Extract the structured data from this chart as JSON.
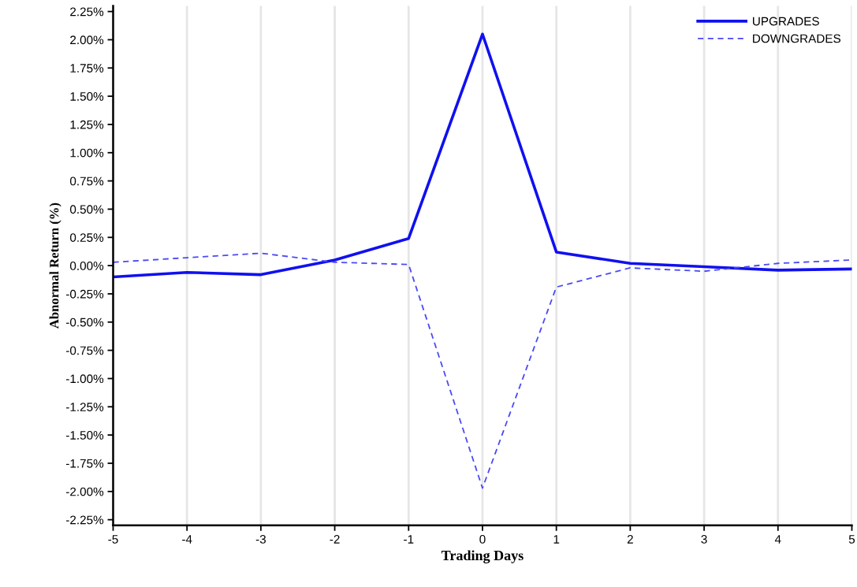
{
  "chart_data": {
    "type": "line",
    "xlabel": "Trading Days",
    "ylabel": "Abnormal Return (%)",
    "x": [
      -5,
      -4,
      -3,
      -2,
      -1,
      0,
      1,
      2,
      3,
      4,
      5
    ],
    "series": [
      {
        "name": "UPGRADES",
        "color": "#1010f0",
        "line_style": "solid",
        "values": [
          -0.1,
          -0.06,
          -0.08,
          0.05,
          0.24,
          2.05,
          0.12,
          0.02,
          -0.01,
          -0.04,
          -0.03
        ]
      },
      {
        "name": "DOWNGRADES",
        "color": "#4a4af5",
        "line_style": "dashed",
        "values": [
          0.03,
          0.07,
          0.11,
          0.03,
          0.01,
          -1.97,
          -0.19,
          -0.02,
          -0.05,
          0.02,
          0.05
        ]
      }
    ],
    "xlim": [
      -5,
      5
    ],
    "xticks": [
      -5,
      -4,
      -3,
      -2,
      -1,
      0,
      1,
      2,
      3,
      4,
      5
    ],
    "ylim": [
      -2.3,
      2.3
    ],
    "yticks": [
      {
        "value": -2.25,
        "label": "-2.25%"
      },
      {
        "value": -2.0,
        "label": "-2.00%"
      },
      {
        "value": -1.75,
        "label": "-1.75%"
      },
      {
        "value": -1.5,
        "label": "-1.50%"
      },
      {
        "value": -1.25,
        "label": "-1.25%"
      },
      {
        "value": -1.0,
        "label": "-1.00%"
      },
      {
        "value": -0.75,
        "label": "-0.75%"
      },
      {
        "value": -0.5,
        "label": "-0.50%"
      },
      {
        "value": -0.25,
        "label": "-0.25%"
      },
      {
        "value": 0,
        "label": "0.00%"
      },
      {
        "value": 0.25,
        "label": "0.25%"
      },
      {
        "value": 0.5,
        "label": "0.50%"
      },
      {
        "value": 0.75,
        "label": "0.75%"
      },
      {
        "value": 1.0,
        "label": "1.00%"
      },
      {
        "value": 1.25,
        "label": "1.25%"
      },
      {
        "value": 1.5,
        "label": "1.50%"
      },
      {
        "value": 1.75,
        "label": "1.75%"
      },
      {
        "value": 2.0,
        "label": "2.00%"
      },
      {
        "value": 2.25,
        "label": "2.25%"
      }
    ],
    "grid": "x",
    "legend": "top right",
    "marker": "none"
  }
}
